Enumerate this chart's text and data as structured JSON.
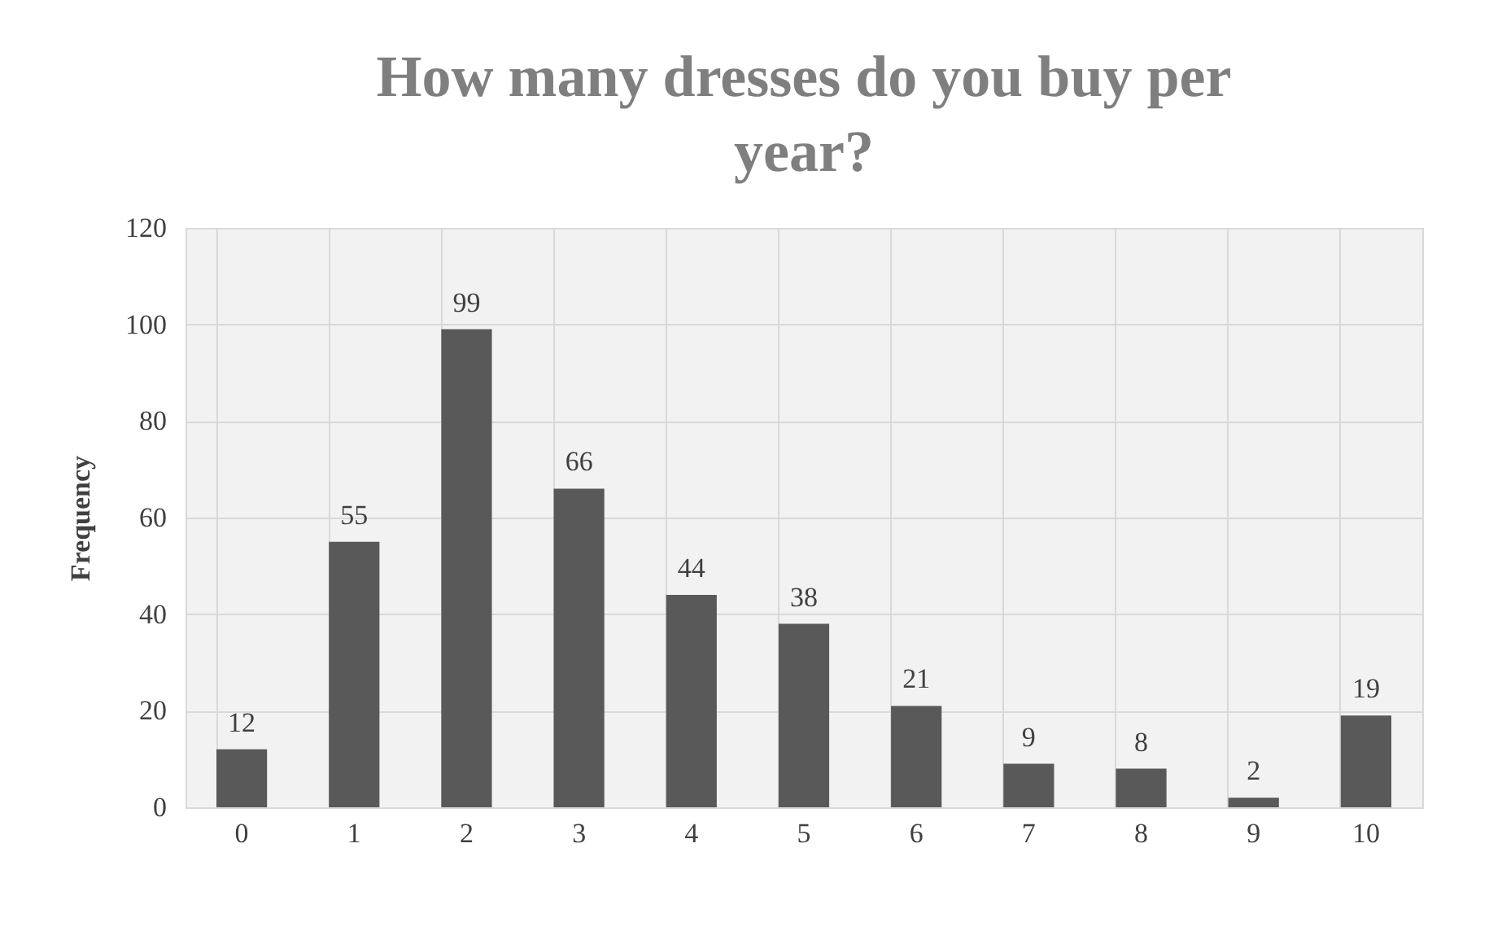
{
  "chart_data": {
    "type": "bar",
    "title": "How many dresses do you buy per year?",
    "ylabel": "Frequency",
    "categories": [
      "0",
      "1",
      "2",
      "3",
      "4",
      "5",
      "6",
      "7",
      "8",
      "9",
      "10"
    ],
    "values": [
      12,
      55,
      99,
      66,
      44,
      38,
      21,
      9,
      8,
      2,
      19
    ],
    "color": "#595959",
    "ylim": [
      0,
      120
    ],
    "yticks": [
      0,
      20,
      40,
      60,
      80,
      100,
      120
    ],
    "grid": true,
    "data_labels": true
  }
}
